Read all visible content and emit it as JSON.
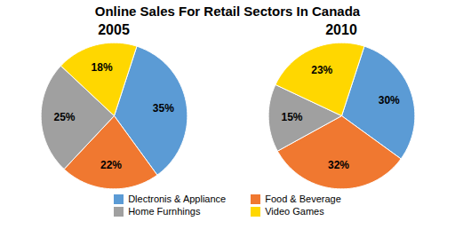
{
  "title": "Online Sales For Retail Sectors In Canada",
  "chart_data": [
    {
      "type": "pie",
      "title": "2005",
      "categories": [
        "Dlectronis & Appliance",
        "Food & Beverage",
        "Home Furnhings",
        "Video Games"
      ],
      "values": [
        35,
        22,
        25,
        18
      ],
      "value_labels": [
        "35%",
        "22%",
        "25%",
        "18%"
      ],
      "colors": [
        "#5B9BD5",
        "#F07830",
        "#A0A0A0",
        "#FFD700"
      ],
      "data_labels": true,
      "legend": "bottom"
    },
    {
      "type": "pie",
      "title": "2010",
      "categories": [
        "Dlectronis & Appliance",
        "Food & Beverage",
        "Home Furnhings",
        "Video Games"
      ],
      "values": [
        30,
        32,
        15,
        23
      ],
      "value_labels": [
        "30%",
        "32%",
        "15%",
        "23%"
      ],
      "colors": [
        "#5B9BD5",
        "#F07830",
        "#A0A0A0",
        "#FFD700"
      ],
      "data_labels": true,
      "legend": "bottom"
    }
  ]
}
